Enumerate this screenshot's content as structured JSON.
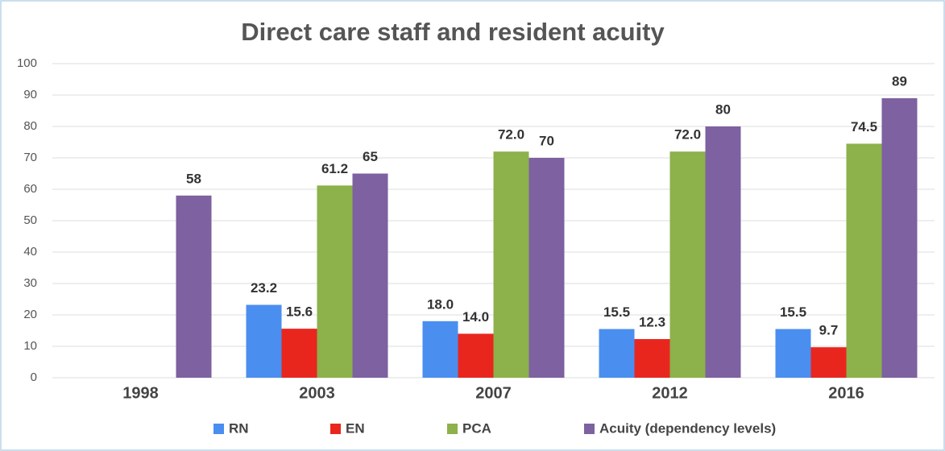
{
  "chart_data": {
    "type": "bar",
    "title": "Direct care staff and resident acuity",
    "categories": [
      "1998",
      "2003",
      "2007",
      "2012",
      "2016"
    ],
    "series": [
      {
        "name": "RN",
        "color": "#4a8ef0",
        "values": [
          null,
          23.2,
          18,
          15.5,
          15.5
        ],
        "value_labels": [
          null,
          "23.2",
          "18.0",
          "15.5",
          "15.5"
        ]
      },
      {
        "name": "EN",
        "color": "#e8261e",
        "values": [
          null,
          15.6,
          14,
          12.3,
          9.7
        ],
        "value_labels": [
          null,
          "15.6",
          "14.0",
          "12.3",
          "9.7"
        ]
      },
      {
        "name": "PCA",
        "color": "#8db14b",
        "values": [
          null,
          61.2,
          72,
          72,
          74.5
        ],
        "value_labels": [
          null,
          "61.2",
          "72.0",
          "72.0",
          "74.5"
        ]
      },
      {
        "name": "Acuity (dependency levels)",
        "color": "#7d61a0",
        "values": [
          58,
          65,
          70,
          80,
          89
        ]
      }
    ],
    "ylim": [
      0,
      100
    ],
    "yticks": [
      0,
      10,
      20,
      30,
      40,
      50,
      60,
      70,
      80,
      90,
      100
    ],
    "grid": true,
    "legend": "bottom"
  }
}
